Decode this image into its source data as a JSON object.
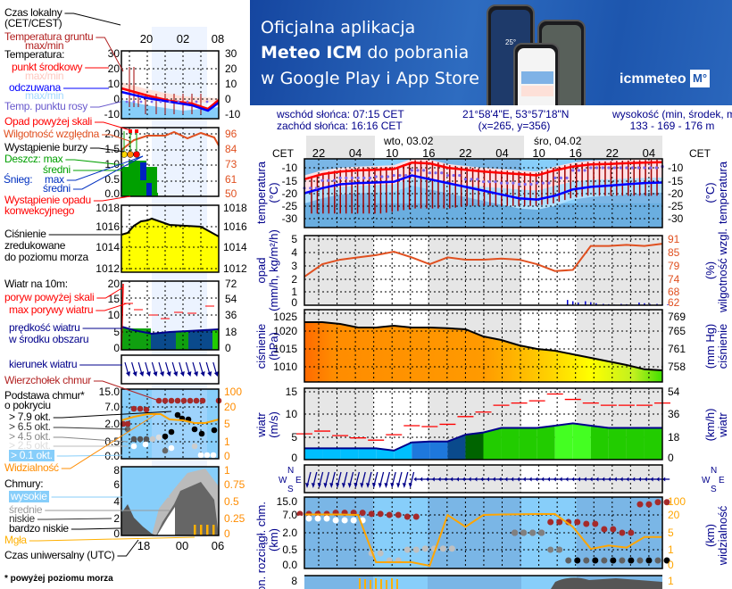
{
  "banner": {
    "line1": "Oficjalna aplikacja",
    "line2_bold": "Meteo ICM",
    "line2_rest": " do pobrania",
    "line3": "w Google Play i App Store",
    "logo_text": "icmmeteo",
    "logo_badge": "M°",
    "phone_temp": "25°"
  },
  "info": {
    "sunrise": "wschód słońca: 07:15 CET",
    "sunset": "zachód słońca: 16:16 CET",
    "coords": "21°58'4\"E, 53°57'18\"N",
    "grid": "(x=265,  y=356)",
    "elevation_label": "wysokość (min, środek, max)",
    "elevation": "133 - 169 - 176 m"
  },
  "legend": {
    "local_time": "Czas lokalny",
    "local_time2": "(CET/CEST)",
    "ground_temp": "Temperatura gruntu",
    "ground_temp2": "max/min",
    "temperature": "Temperatura:",
    "mid_point": "punkt środkowy",
    "maxmin1": "max/min",
    "felt": "odczuwana",
    "maxmin2": "max/min",
    "dew_point": "Temp. punktu rosy",
    "precip_above": "Opad powyżej skali",
    "humidity": "Wilgotność względna",
    "storm": "Wystąpienie burzy",
    "rain_max": "Deszcz: max",
    "rain_avg": "średni",
    "snow": "Śnieg:",
    "snow_max": "max",
    "snow_avg": "średni",
    "convective": "Wystąpienie opadu",
    "convective2": "konwekcyjnego",
    "pressure": "Ciśnienie",
    "pressure2": "zredukowane",
    "pressure3": "do poziomu morza",
    "wind10": "Wiatr na 10m:",
    "gust_above": "poryw powyżej skali",
    "gust_max": "max porywy wiatru",
    "wind_speed": "prędkość wiatru",
    "wind_speed2": "w środku obszaru",
    "wind_dir": "kierunek wiatru",
    "cloud_top": "Wierzchołek chmur",
    "cloud_base": "Podstawa chmur*",
    "cloud_base2": "o pokryciu",
    "okt79": "> 7.9 okt.",
    "okt65": "> 6.5 okt.",
    "okt45": "> 4.5 okt.",
    "okt25": "> 2.5 okt.",
    "okt01": "> 0.1 okt.",
    "visibility": "Widzialność",
    "clouds": "Chmury:",
    "high": "wysokie",
    "mid": "średnie",
    "low": "niskie",
    "very_low": "bardzo niskie",
    "fog": "Mgła",
    "utc": "Czas uniwersalny (UTC)",
    "footnote": "* powyżej poziomu morza",
    "top_ticks": [
      "20",
      "02",
      "08"
    ],
    "bottom_ticks": [
      "18",
      "00",
      "06"
    ],
    "temp_ticks": [
      "30",
      "20",
      "10",
      "0",
      "-10"
    ],
    "precip_ticks": [
      "2.0",
      "1.5",
      "1.0",
      "0.5",
      "0.0"
    ],
    "hum_ticks": [
      "96",
      "84",
      "73",
      "61",
      "50"
    ],
    "press_ticks": [
      "1018",
      "1016",
      "1014",
      "1012"
    ],
    "wind_ticks": [
      "20",
      "15",
      "10",
      "5",
      "0"
    ],
    "wind_kmh_ticks": [
      "72",
      "54",
      "36",
      "18",
      "0"
    ],
    "base_ticks": [
      "15.0",
      "7.0",
      "2.0",
      "0.5",
      "0.0"
    ],
    "vis_ticks": [
      "100",
      "20",
      "5",
      "1",
      "0"
    ],
    "cloud_ticks": [
      "8",
      "6",
      "4",
      "2",
      "0"
    ],
    "cover_ticks": [
      "1",
      "0.75",
      "0.5",
      "0.25",
      "0"
    ]
  },
  "chart_data": {
    "type": "line",
    "time_header": {
      "left_label": "CET",
      "right_label": "CET",
      "days": [
        "wto, 03.02",
        "śro, 04.02"
      ],
      "hour_ticks": [
        "22",
        "04",
        "10",
        "16",
        "22",
        "04",
        "10",
        "16",
        "22",
        "04"
      ]
    },
    "colors": {
      "temp": "#ff0000",
      "felt": "#0000ff",
      "dew": "#7b68ee",
      "humidity": "#e05020",
      "pressure_line": "#000000",
      "gust": "#ff0000",
      "wind": "#00008b",
      "visibility": "#ffa500",
      "cloud_top": "#a52a2a",
      "night": "#e6e6e6"
    },
    "temperature": {
      "ylabel": "temperatura",
      "unit": "(°C)",
      "ticks": [
        "-10",
        "-15",
        "-20",
        "-25",
        "-30"
      ],
      "mid": [
        -14.5,
        -12.5,
        -11.5,
        -11,
        -10.8,
        -10.5,
        -8,
        -8.3,
        -10,
        -10.8,
        -11.5,
        -12,
        -12.5,
        -13,
        -11,
        -9.5,
        -8.7,
        -8.5,
        -8.2,
        -8,
        -7.8
      ],
      "felt": [
        -20,
        -18,
        -16.5,
        -16,
        -15.8,
        -15.5,
        -13,
        -14.5,
        -16,
        -17.5,
        -19,
        -20.5,
        -22,
        -22.5,
        -21,
        -18.5,
        -17.5,
        -17,
        -16.5,
        -16,
        -15.8
      ],
      "dew": [
        -18,
        -15,
        -14,
        -14,
        -13.5,
        -13,
        -11,
        -12,
        -13,
        -14.5,
        -15.5,
        -16,
        -16.5,
        -16,
        -14,
        -11,
        -10,
        -10,
        -10,
        -10,
        -9.5
      ],
      "ground_min": [
        -28,
        -28,
        -28,
        -28,
        -28,
        -27,
        -26,
        -26,
        -26,
        -25,
        -25,
        -25,
        -25,
        -25,
        -24,
        -22,
        -21,
        -21,
        -21,
        -21,
        -21
      ]
    },
    "precipitation": {
      "ylabel": "opad",
      "unit": "(mm/h, kg/m²/h)",
      "ticks": [
        "5",
        "4",
        "3",
        "2",
        "1",
        "0"
      ],
      "right_label": "wilgotność wzgl.",
      "right_unit": "(%)",
      "right_ticks": [
        "91",
        "85",
        "79",
        "74",
        "68",
        "62"
      ],
      "humidity": [
        74.5,
        80,
        82,
        83,
        84,
        85.5,
        83,
        80,
        83,
        82,
        82,
        82.5,
        82,
        80,
        77,
        77.5,
        88,
        88,
        88.5,
        88,
        89
      ],
      "snow": [
        0,
        0,
        0,
        0,
        0,
        0,
        0,
        0,
        0,
        0,
        0,
        0,
        0,
        0,
        0,
        0.4,
        0.3,
        0.1,
        0.1,
        0.2,
        0.1
      ]
    },
    "pressure": {
      "ylabel": "ciśnienie",
      "unit": "(hPa)",
      "ticks": [
        "1025",
        "1020",
        "1015",
        "1010"
      ],
      "right_label": "ciśnienie",
      "right_unit": "(mm Hg)",
      "right_ticks": [
        "769",
        "765",
        "761",
        "758"
      ],
      "values": [
        1022.5,
        1022.5,
        1022,
        1021,
        1021,
        1021.5,
        1021,
        1021,
        1020.8,
        1020.5,
        1018.5,
        1017.5,
        1016,
        1015,
        1014.5,
        1013.5,
        1012.5,
        1011.5,
        1010.5,
        1009.3,
        1009
      ]
    },
    "wind": {
      "ylabel": "wiatr",
      "unit": "(m/s)",
      "ticks": [
        "15",
        "10",
        "5",
        "0"
      ],
      "right_label": "wiatr",
      "right_unit": "(km/h)",
      "right_ticks": [
        "54",
        "36",
        "18",
        "0"
      ],
      "speed": [
        2.5,
        2.5,
        2.5,
        2.5,
        2.5,
        2,
        3.8,
        4,
        4,
        5.5,
        6,
        7,
        7,
        7,
        7.5,
        8,
        7.5,
        7,
        7,
        7,
        7
      ],
      "gust": [
        5.7,
        6.3,
        5.3,
        4.8,
        4.3,
        5.5,
        7.5,
        7.3,
        7.8,
        9.5,
        10.5,
        12,
        12.5,
        13,
        14.5,
        13.3,
        12.5,
        12,
        12,
        12,
        12.5
      ],
      "direction_deg": [
        10,
        10,
        10,
        10,
        10,
        20,
        90,
        90,
        90,
        90,
        90,
        90,
        90,
        90,
        90,
        90,
        90,
        90,
        90,
        90,
        90
      ]
    },
    "wind_direction": {
      "compass": [
        "W",
        "N",
        "E",
        "S"
      ]
    },
    "clouds_base": {
      "ylabel": "pion. rozciągł. chm.",
      "unit": "(km)",
      "ticks": [
        "15.0",
        "7.0",
        "2.0",
        "0.5",
        "0.0"
      ],
      "right_label": "widzialność",
      "right_unit": "(km)",
      "right_ticks": [
        "100",
        "20",
        "5",
        "1",
        "0"
      ],
      "visibility": [
        22,
        22,
        22,
        20,
        0.3,
        0.3,
        0.3,
        0.1,
        20,
        10,
        20,
        22,
        23,
        24,
        24,
        10,
        1.2,
        2,
        1.5,
        4,
        4
      ],
      "cloud_top": [
        7.5,
        7.5,
        8,
        8,
        7.5,
        7,
        6.5,
        null,
        null,
        null,
        null,
        null,
        2,
        2,
        5,
        5,
        4.5,
        3,
        2,
        12,
        13
      ],
      "cloud_base_low": [
        6,
        6,
        5.5,
        5.5,
        0.4,
        0.2,
        0.5,
        0.6,
        0.6,
        null,
        null,
        null,
        2,
        2,
        0.5,
        0.2,
        0.2,
        0.2,
        0.2,
        0.2,
        0.2
      ]
    },
    "clouds": {
      "ticks": [
        "8"
      ],
      "right_ticks": [
        "1"
      ]
    }
  }
}
